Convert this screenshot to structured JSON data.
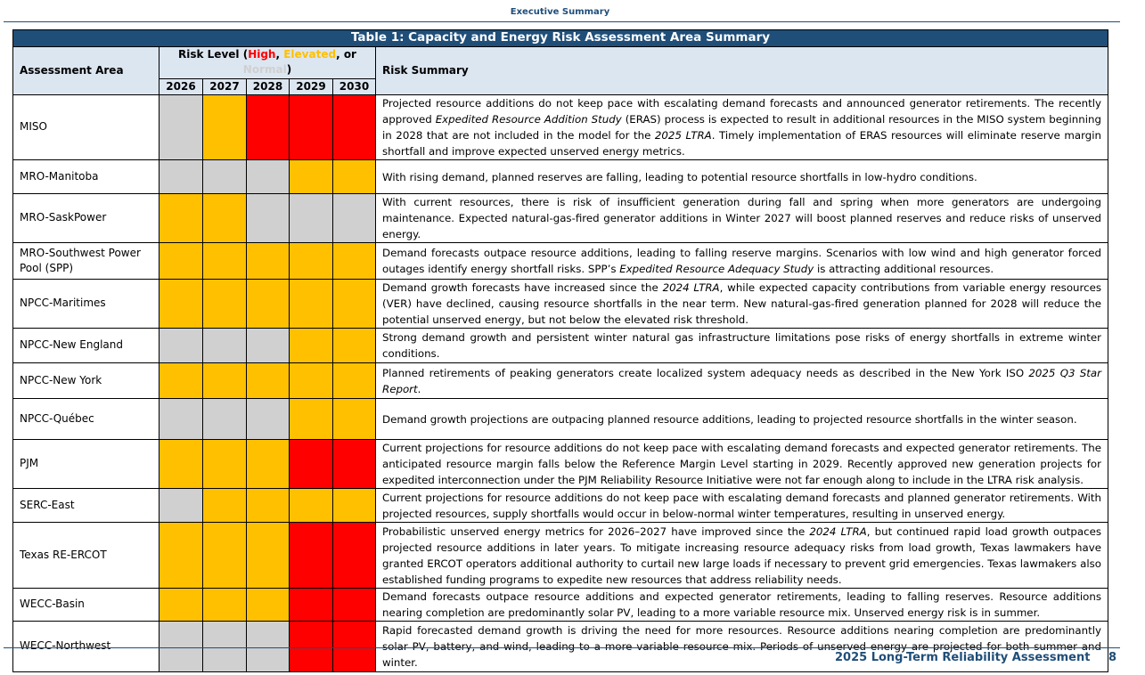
{
  "header": {
    "section": "Executive Summary"
  },
  "table": {
    "title": "Table 1: Capacity and Energy Risk Assessment Area Summary",
    "col_area": "Assessment Area",
    "col_summary": "Risk Summary",
    "risk_legend": {
      "open": "Risk Level (",
      "levels": [
        {
          "label": "High",
          "color": "#ff0000"
        },
        {
          "label": "Elevated",
          "color": "#ffc000"
        },
        {
          "label": "Normal",
          "color": "#d0d0d0"
        }
      ],
      "seps": [
        ", ",
        ", or "
      ],
      "close": ")"
    },
    "years": [
      "2026",
      "2027",
      "2028",
      "2029",
      "2030"
    ],
    "rows": [
      {
        "area": "MISO",
        "risk": [
          "Normal",
          "Elevated",
          "High",
          "High",
          "High"
        ],
        "summary": [
          "Projected resource additions do not keep pace with escalating demand forecasts and announced generator retirements. The recently approved ",
          "Expedited Resource Addition Study",
          " (ERAS) process is expected to result in additional resources in the MISO system beginning in 2028 that are not included in the model for the ",
          "2025 LTRA",
          ". Timely implementation of ERAS resources will eliminate reserve margin shortfall and improve expected unserved energy metrics."
        ]
      },
      {
        "area": "MRO-Manitoba",
        "risk": [
          "Normal",
          "Normal",
          "Normal",
          "Elevated",
          "Elevated"
        ],
        "summary": [
          "With rising demand, planned reserves are falling, leading to potential resource shortfalls in low-hydro conditions."
        ]
      },
      {
        "area": "MRO-SaskPower",
        "risk": [
          "Elevated",
          "Elevated",
          "Normal",
          "Normal",
          "Normal"
        ],
        "summary": [
          "With current resources, there is risk of insufficient generation during fall and spring when more generators are undergoing maintenance. Expected natural-gas-fired generator additions in Winter 2027 will boost planned reserves and reduce risks of unserved energy."
        ]
      },
      {
        "area": "MRO-Southwest Power Pool (SPP)",
        "risk": [
          "Elevated",
          "Elevated",
          "Elevated",
          "Elevated",
          "Elevated"
        ],
        "summary": [
          "Demand forecasts outpace resource additions, leading to falling reserve margins. Scenarios with low wind and high generator forced outages identify energy shortfall risks. SPP’s ",
          "Expedited Resource Adequacy Study",
          " is attracting additional resources."
        ]
      },
      {
        "area": "NPCC-Maritimes",
        "risk": [
          "Elevated",
          "Elevated",
          "Elevated",
          "Elevated",
          "Elevated"
        ],
        "summary": [
          "Demand growth forecasts have increased since the ",
          "2024 LTRA",
          ", while expected capacity contributions from variable energy resources (VER) have declined, causing resource shortfalls in the near term. New natural-gas-fired generation planned for 2028 will reduce the potential unserved energy, but not below the elevated risk threshold."
        ]
      },
      {
        "area": "NPCC-New England",
        "risk": [
          "Normal",
          "Normal",
          "Normal",
          "Elevated",
          "Elevated"
        ],
        "summary": [
          "Strong demand growth and persistent winter natural gas infrastructure limitations pose risks of energy shortfalls in extreme winter conditions."
        ]
      },
      {
        "area": "NPCC-New York",
        "risk": [
          "Elevated",
          "Elevated",
          "Elevated",
          "Elevated",
          "Elevated"
        ],
        "summary": [
          "Planned retirements of peaking generators create localized system adequacy needs as described in the New York ISO ",
          "2025 Q3 Star Report",
          "."
        ]
      },
      {
        "area": "NPCC-Québec",
        "risk": [
          "Normal",
          "Normal",
          "Normal",
          "Elevated",
          "Elevated"
        ],
        "summary": [
          "Demand growth projections are outpacing planned resource additions, leading to projected resource shortfalls in the winter season."
        ]
      },
      {
        "area": "PJM",
        "risk": [
          "Elevated",
          "Elevated",
          "Elevated",
          "High",
          "High"
        ],
        "summary": [
          "Current projections for resource additions do not keep pace with escalating demand forecasts and expected generator retirements. The anticipated resource margin falls below the Reference Margin Level starting in 2029. Recently approved new generation projects for expedited interconnection under the PJM Reliability Resource Initiative were not far enough along to include in the LTRA risk analysis."
        ]
      },
      {
        "area": "SERC-East",
        "risk": [
          "Normal",
          "Elevated",
          "Elevated",
          "Elevated",
          "Elevated"
        ],
        "summary": [
          "Current projections for resource additions do not keep pace with escalating demand forecasts and planned generator retirements. With projected resources, supply shortfalls would occur in below-normal winter temperatures, resulting in unserved energy."
        ]
      },
      {
        "area": "Texas RE-ERCOT",
        "risk": [
          "Elevated",
          "Elevated",
          "Elevated",
          "High",
          "High"
        ],
        "summary": [
          "Probabilistic unserved energy metrics for 2026–2027 have improved since the ",
          "2024 LTRA",
          ", but continued rapid load growth outpaces projected resource additions in later years. To mitigate increasing resource adequacy risks from load growth, Texas lawmakers have granted ERCOT operators additional authority to curtail new large loads if necessary to prevent grid emergencies. Texas lawmakers also established funding programs to expedite new resources that address reliability needs."
        ]
      },
      {
        "area": "WECC-Basin",
        "risk": [
          "Elevated",
          "Elevated",
          "Elevated",
          "High",
          "High"
        ],
        "summary": [
          "Demand forecasts outpace resource additions and expected generator retirements, leading to falling reserves. Resource additions nearing completion are predominantly solar PV, leading to a more variable resource mix. Unserved energy risk is in summer."
        ]
      },
      {
        "area": "WECC-Northwest",
        "risk": [
          "Normal",
          "Normal",
          "Normal",
          "High",
          "High"
        ],
        "summary": [
          "Rapid forecasted demand growth is driving the need for more resources. Resource additions nearing completion are predominantly solar PV, battery, and wind, leading to a more variable resource mix. Periods of unserved energy are projected for both summer and winter."
        ]
      }
    ]
  },
  "footer": {
    "title": "2025 Long-Term Reliability Assessment",
    "page": "8"
  }
}
